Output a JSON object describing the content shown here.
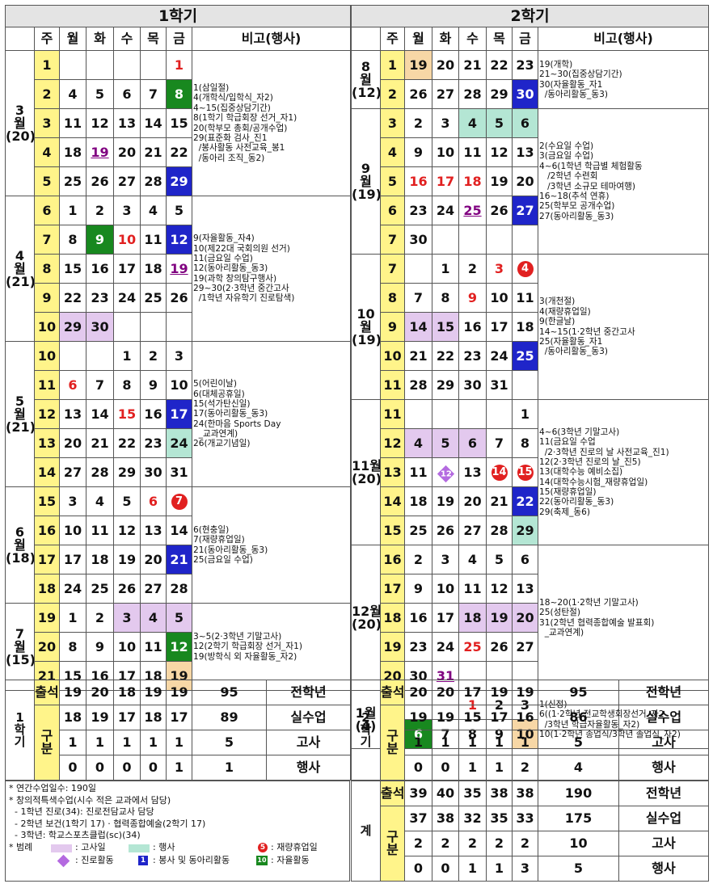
{
  "sem1": {
    "title": "1학기",
    "hdr": [
      "주",
      "월",
      "화",
      "수",
      "목",
      "금",
      "비고(행사)"
    ]
  },
  "sem2": {
    "title": "2학기",
    "hdr": [
      "주",
      "월",
      "화",
      "수",
      "목",
      "금",
      "비고(행사)"
    ]
  },
  "m3": {
    "label": "3\n월\n(20)",
    "notes": "1(삼일절)\n4(개학식/입학식_자2)\n4~15(집중상담기간)\n8(1학기 학급회장 선거_자1)\n20(학부모 총회/공개수업)\n29(표준화 검사_진1\n  /봉사활동 사전교육_봉1\n  /동아리 조직_동2)",
    "rows": [
      [
        "1",
        "",
        "",
        "",
        "",
        "1"
      ],
      [
        "2",
        "4",
        "5",
        "6",
        "7",
        "8"
      ],
      [
        "3",
        "11",
        "12",
        "13",
        "14",
        "15"
      ],
      [
        "4",
        "18",
        "19",
        "20",
        "21",
        "22"
      ],
      [
        "5",
        "25",
        "26",
        "27",
        "28",
        "29"
      ]
    ]
  },
  "m4": {
    "label": "4\n월\n(21)",
    "notes": "9(자율활동_자4)\n10(제22대 국회의원 선거)\n11(금요일 수업)\n12(동아리활동_동3)\n19(과학 창의탐구행사)\n29~30(2·3학년 중간고사\n  /1학년 자유학기 진로탐색)",
    "rows": [
      [
        "6",
        "1",
        "2",
        "3",
        "4",
        "5"
      ],
      [
        "7",
        "8",
        "9",
        "10",
        "11",
        "12"
      ],
      [
        "8",
        "15",
        "16",
        "17",
        "18",
        "19"
      ],
      [
        "9",
        "22",
        "23",
        "24",
        "25",
        "26"
      ],
      [
        "10",
        "29",
        "30",
        "",
        "",
        ""
      ]
    ]
  },
  "m5": {
    "label": "5\n월\n(21)",
    "notes": "5(어린이날)\n6(대체공휴일)\n15(석가탄신일)\n17(동아리활동_동3)\n24(한마음 Sports Day\n  _교과연계)\n26(개교기념일)",
    "rows": [
      [
        "10",
        "",
        "",
        "1",
        "2",
        "3"
      ],
      [
        "11",
        "6",
        "7",
        "8",
        "9",
        "10"
      ],
      [
        "12",
        "13",
        "14",
        "15",
        "16",
        "17"
      ],
      [
        "13",
        "20",
        "21",
        "22",
        "23",
        "24"
      ],
      [
        "14",
        "27",
        "28",
        "29",
        "30",
        "31"
      ]
    ]
  },
  "m6": {
    "label": "6\n월\n(18)",
    "notes": "6(현충일)\n7(재량휴업일)\n21(동아리활동_동3)\n25(금요일 수업)",
    "rows": [
      [
        "15",
        "3",
        "4",
        "5",
        "6",
        "7"
      ],
      [
        "16",
        "10",
        "11",
        "12",
        "13",
        "14"
      ],
      [
        "17",
        "17",
        "18",
        "19",
        "20",
        "21"
      ],
      [
        "18",
        "24",
        "25",
        "26",
        "27",
        "28"
      ]
    ]
  },
  "m7": {
    "label": "7\n월\n(15)",
    "notes": "3~5(2·3학년 기말고사)\n12(2학기 학급회장 선거_자1)\n19(방학식 외 자율활동_자2)",
    "rows": [
      [
        "19",
        "1",
        "2",
        "3",
        "4",
        "5"
      ],
      [
        "20",
        "8",
        "9",
        "10",
        "11",
        "12"
      ],
      [
        "21",
        "15",
        "16",
        "17",
        "18",
        "19"
      ]
    ]
  },
  "m8": {
    "label": "8\n월\n(12)",
    "notes": "19(개학)\n21~30(집중상담기간)\n30(자율활동_자1\n  /동아리활동_동3)",
    "rows": [
      [
        "1",
        "19",
        "20",
        "21",
        "22",
        "23"
      ],
      [
        "2",
        "26",
        "27",
        "28",
        "29",
        "30"
      ]
    ]
  },
  "m9": {
    "label": "9\n월\n(19)",
    "notes": "2(수요일 수업)\n3(금요일 수업)\n4~6(1학년 학급별 체험활동\n   /2학년 수련회\n   /3학년 소규모 테마여행)\n16~18(추석 연휴)\n25(학부모 공개수업)\n27(동아리활동_동3)",
    "rows": [
      [
        "3",
        "2",
        "3",
        "4",
        "5",
        "6"
      ],
      [
        "4",
        "9",
        "10",
        "11",
        "12",
        "13"
      ],
      [
        "5",
        "16",
        "17",
        "18",
        "19",
        "20"
      ],
      [
        "6",
        "23",
        "24",
        "25",
        "26",
        "27"
      ],
      [
        "7",
        "30",
        "",
        "",
        "",
        ""
      ]
    ]
  },
  "m10": {
    "label": "10\n월\n(19)",
    "notes": "3(개천절)\n4(재량휴업일)\n9(한글날)\n14~15(1·2학년 중간고사\n25(자율활동_자1\n  /동아리활동_동3)",
    "rows": [
      [
        "7",
        "",
        "1",
        "2",
        "3",
        "4"
      ],
      [
        "8",
        "7",
        "8",
        "9",
        "10",
        "11"
      ],
      [
        "9",
        "14",
        "15",
        "16",
        "17",
        "18"
      ],
      [
        "10",
        "21",
        "22",
        "23",
        "24",
        "25"
      ],
      [
        "11",
        "28",
        "29",
        "30",
        "31",
        ""
      ]
    ]
  },
  "m11": {
    "label": "11월\n(20)",
    "notes": "4~6(3학년 기말고사)\n11(금요일 수업\n  /2·3학년 진로의 날 사전교육_진1)\n12(2·3학년 진로의 날_진5)\n13(대학수능 예비소집)\n14(대학수능시험_재량휴업일)\n15(재량휴업일)\n22(동아리활동_동3)\n29(축제_동6)",
    "rows": [
      [
        "11",
        "",
        "",
        "",
        "",
        "1"
      ],
      [
        "12",
        "4",
        "5",
        "6",
        "7",
        "8"
      ],
      [
        "13",
        "11",
        "12",
        "13",
        "14",
        "15"
      ],
      [
        "14",
        "18",
        "19",
        "20",
        "21",
        "22"
      ],
      [
        "15",
        "25",
        "26",
        "27",
        "28",
        "29"
      ]
    ]
  },
  "m12": {
    "label": "12월\n(20)",
    "notes": "18~20(1·2학년 기말고사)\n25(성탄절)\n31(2학년 협력종합예술 발표회)\n  _교과연계)",
    "rows": [
      [
        "16",
        "2",
        "3",
        "4",
        "5",
        "6"
      ],
      [
        "17",
        "9",
        "10",
        "11",
        "12",
        "13"
      ],
      [
        "18",
        "16",
        "17",
        "18",
        "19",
        "20"
      ],
      [
        "19",
        "23",
        "24",
        "25",
        "26",
        "27"
      ],
      [
        "20",
        "30",
        "31",
        "",
        "",
        ""
      ]
    ]
  },
  "m1": {
    "label": "1월\n(4)",
    "notes": "1(신정)\n6((1·2학년 전교학생회장선거_자2\n  /3학년 학급자율활동_자2)\n10(1·2학년 종업식/3학년 졸업식_자2)",
    "rows": [
      [
        "20",
        "",
        "",
        "1",
        "2",
        "3"
      ],
      [
        "21",
        "6",
        "7",
        "8",
        "9",
        "10"
      ]
    ]
  },
  "sum1": {
    "label": "1\n학\n기",
    "attend": "출석",
    "gubun": "구\n분",
    "rows": [
      [
        "19",
        "20",
        "18",
        "19",
        "19",
        "95",
        "전학년"
      ],
      [
        "18",
        "19",
        "17",
        "18",
        "17",
        "89",
        "실수업"
      ],
      [
        "1",
        "1",
        "1",
        "1",
        "1",
        "5",
        "고사"
      ],
      [
        "0",
        "0",
        "0",
        "0",
        "1",
        "1",
        "행사"
      ]
    ]
  },
  "sum2": {
    "label": "2\n학\n기",
    "attend": "출석",
    "gubun": "구\n분",
    "rows": [
      [
        "20",
        "20",
        "17",
        "19",
        "19",
        "95",
        "전학년"
      ],
      [
        "19",
        "19",
        "15",
        "17",
        "16",
        "86",
        "실수업"
      ],
      [
        "1",
        "1",
        "1",
        "1",
        "1",
        "5",
        "고사"
      ],
      [
        "0",
        "0",
        "1",
        "1",
        "2",
        "4",
        "행사"
      ]
    ]
  },
  "total": {
    "label": "계",
    "attend": "출석",
    "gubun": "구\n분",
    "rows": [
      [
        "39",
        "40",
        "35",
        "38",
        "38",
        "190",
        "전학년"
      ],
      [
        "37",
        "38",
        "32",
        "35",
        "33",
        "175",
        "실수업"
      ],
      [
        "2",
        "2",
        "2",
        "2",
        "2",
        "10",
        "고사"
      ],
      [
        "0",
        "0",
        "1",
        "1",
        "3",
        "5",
        "행사"
      ]
    ]
  },
  "legend": {
    "lines": [
      "* 연간수업일수: 190일",
      "* 창의적특색수업(시수 적은 교과에서 담당)",
      "  - 1학년 진로(34): 진로전담교사 담당",
      "  - 2학년 보건(1학기 17) · 협력종합예술(2학기 17)",
      "  - 3학년: 학교스포츠클럽(sc)(34)"
    ],
    "title": "* 범례",
    "exam": ": 고사일",
    "event": ": 행사",
    "holiday": ": 재량휴업일",
    "career": ": 진로활동",
    "service": ": 봉사 및 동아리활동",
    "auto": ": 자율활동",
    "holiday_num": "5",
    "career_num": "12",
    "service_num": "1",
    "auto_num": "10"
  }
}
